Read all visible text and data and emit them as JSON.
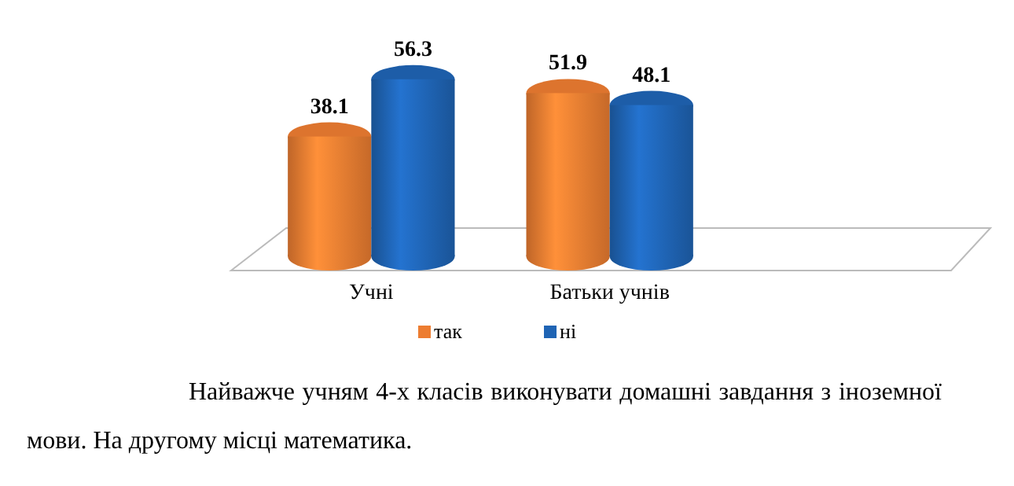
{
  "chart_data": {
    "type": "bar",
    "categories": [
      "Учні",
      "Батьки учнів"
    ],
    "series": [
      {
        "name": "так",
        "color": "#ed7d31",
        "values": [
          38.1,
          51.9
        ]
      },
      {
        "name": "ні",
        "color": "#1f64b4",
        "values": [
          56.3,
          48.1
        ]
      }
    ],
    "data_labels": true,
    "legend": "bottom",
    "annotations": [
      "Найважче учням 4-х класів виконувати домашні завдання з іноземної мови. На другому місці математика."
    ]
  }
}
